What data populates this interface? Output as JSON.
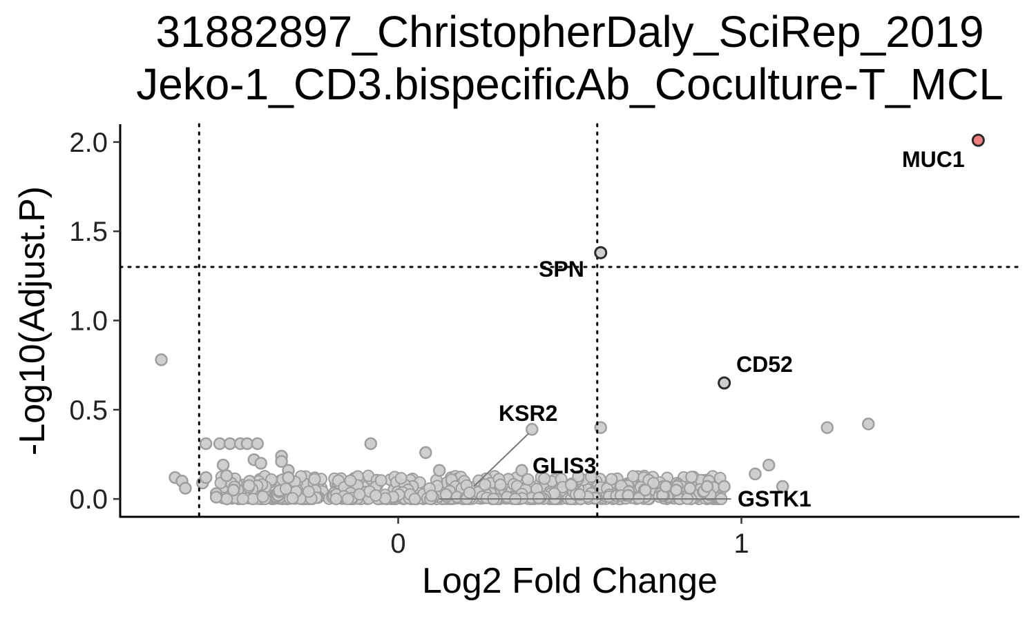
{
  "chart_data": {
    "type": "scatter",
    "title": [
      "31882897_ChristopherDaly_SciRep_2019",
      "Jeko-1_CD3.bispecificAb_Coculture-T_MCL"
    ],
    "xlabel": "Log2 Fold Change",
    "ylabel": "-Log10(Adjust.P)",
    "xlim": [
      -0.81,
      1.81
    ],
    "ylim": [
      -0.1,
      2.1
    ],
    "x_ticks": [
      0,
      1
    ],
    "x_tick_labels": [
      "0",
      "1"
    ],
    "y_ticks": [
      0,
      0.5,
      1,
      1.5,
      2
    ],
    "y_tick_labels": [
      "0.0",
      "0.5",
      "1.0",
      "1.5",
      "2.0"
    ],
    "thresholds": {
      "log2fc": [
        -0.58,
        0.58
      ],
      "neg_log10_p": 1.3
    },
    "grid": false,
    "legend": "none",
    "colors": {
      "nonsignificant": "#cfcfcf",
      "nonsignificant_stroke": "#9e9e9e",
      "highlighted_stroke": "#2b2b2b",
      "significant_up": "#f08080"
    },
    "highlighted": [
      {
        "gene": "MUC1",
        "x": 1.69,
        "y": 2.01,
        "significant": true
      },
      {
        "gene": "SPN",
        "x": 0.59,
        "y": 1.38,
        "significant": false
      },
      {
        "gene": "CD52",
        "x": 0.95,
        "y": 0.65,
        "significant": false
      }
    ],
    "labeled_background": [
      {
        "gene": "KSR2",
        "x": 0.39,
        "y": 0.39
      },
      {
        "gene": "GLIS3",
        "x": 0.36,
        "y": 0.16
      },
      {
        "gene": "GSTK1",
        "x": 0.12,
        "y": 0.0
      }
    ],
    "points": [
      [
        -0.69,
        0.78
      ],
      [
        -0.65,
        0.12
      ],
      [
        -0.63,
        0.1
      ],
      [
        -0.62,
        0.06
      ],
      [
        -0.57,
        0.09
      ],
      [
        -0.56,
        0.12
      ],
      [
        -0.56,
        0.31
      ],
      [
        -0.52,
        0.31
      ],
      [
        -0.49,
        0.31
      ],
      [
        -0.46,
        0.31
      ],
      [
        -0.44,
        0.31
      ],
      [
        -0.41,
        0.31
      ],
      [
        -0.51,
        0.19
      ],
      [
        -0.5,
        0.13
      ],
      [
        -0.42,
        0.22
      ],
      [
        -0.4,
        0.2
      ],
      [
        -0.34,
        0.24
      ],
      [
        -0.34,
        0.21
      ],
      [
        -0.32,
        0.16
      ],
      [
        -0.32,
        0.12
      ],
      [
        -0.08,
        0.31
      ],
      [
        0.08,
        0.26
      ],
      [
        0.12,
        0.16
      ],
      [
        0.36,
        0.16
      ],
      [
        0.39,
        0.39
      ],
      [
        0.59,
        0.4
      ],
      [
        1.04,
        0.14
      ],
      [
        1.08,
        0.19
      ],
      [
        1.12,
        0.07
      ],
      [
        1.25,
        0.4
      ],
      [
        1.37,
        0.42
      ],
      [
        0.67,
        0.02
      ],
      [
        0.77,
        0.02
      ],
      [
        0.9,
        0.07
      ],
      [
        0.95,
        0.07
      ],
      [
        0.78,
        0.07
      ],
      [
        0.85,
        0.06
      ],
      [
        0.72,
        0.05
      ],
      [
        0.81,
        0.05
      ],
      [
        -0.53,
        0.03
      ],
      [
        -0.53,
        0.01
      ],
      [
        -0.48,
        0.05
      ]
    ],
    "dense_band": {
      "x_range": [
        -0.52,
        0.95
      ],
      "y_range": [
        0.0,
        0.13
      ]
    }
  }
}
